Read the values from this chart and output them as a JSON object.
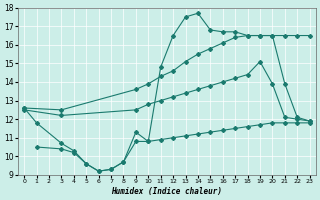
{
  "xlabel": "Humidex (Indice chaleur)",
  "xlim": [
    -0.5,
    23.5
  ],
  "ylim": [
    9,
    18
  ],
  "xticks": [
    0,
    1,
    2,
    3,
    4,
    5,
    6,
    7,
    8,
    9,
    10,
    11,
    12,
    13,
    14,
    15,
    16,
    17,
    18,
    19,
    20,
    21,
    22,
    23
  ],
  "yticks": [
    9,
    10,
    11,
    12,
    13,
    14,
    15,
    16,
    17,
    18
  ],
  "bg_color": "#cceee8",
  "grid_color": "#b0ddd6",
  "line_color": "#1a7a6e",
  "line1_x": [
    0,
    1,
    3,
    4,
    5,
    6,
    7,
    8,
    9,
    10,
    11,
    12,
    13,
    14,
    15,
    16,
    17,
    18,
    19,
    20,
    21,
    22,
    23
  ],
  "line1_y": [
    12.6,
    11.8,
    10.7,
    10.3,
    9.6,
    9.2,
    9.3,
    9.7,
    11.3,
    10.8,
    14.8,
    16.5,
    17.5,
    17.7,
    16.8,
    16.7,
    16.7,
    16.5,
    16.5,
    16.5,
    13.9,
    12.1,
    11.9
  ],
  "line2_x": [
    0,
    3,
    9,
    10,
    11,
    12,
    13,
    14,
    15,
    16,
    17,
    18,
    19,
    20,
    21,
    22,
    23
  ],
  "line2_y": [
    12.6,
    12.5,
    13.6,
    13.9,
    14.3,
    14.6,
    15.1,
    15.5,
    15.8,
    16.1,
    16.4,
    16.5,
    16.5,
    16.5,
    16.5,
    16.5,
    16.5
  ],
  "line3_x": [
    0,
    3,
    9,
    10,
    11,
    12,
    13,
    14,
    15,
    16,
    17,
    18,
    19,
    20,
    21,
    22,
    23
  ],
  "line3_y": [
    12.5,
    12.2,
    12.5,
    12.8,
    13.0,
    13.2,
    13.4,
    13.6,
    13.8,
    14.0,
    14.2,
    14.4,
    15.1,
    13.9,
    12.1,
    12.0,
    11.9
  ],
  "line4_x": [
    1,
    3,
    4,
    5,
    6,
    7,
    8,
    9,
    10,
    11,
    12,
    13,
    14,
    15,
    16,
    17,
    18,
    19,
    20,
    21,
    22,
    23
  ],
  "line4_y": [
    10.5,
    10.4,
    10.2,
    9.6,
    9.2,
    9.3,
    9.7,
    10.8,
    10.8,
    10.9,
    11.0,
    11.1,
    11.2,
    11.3,
    11.4,
    11.5,
    11.6,
    11.7,
    11.8,
    11.8,
    11.8,
    11.8
  ]
}
